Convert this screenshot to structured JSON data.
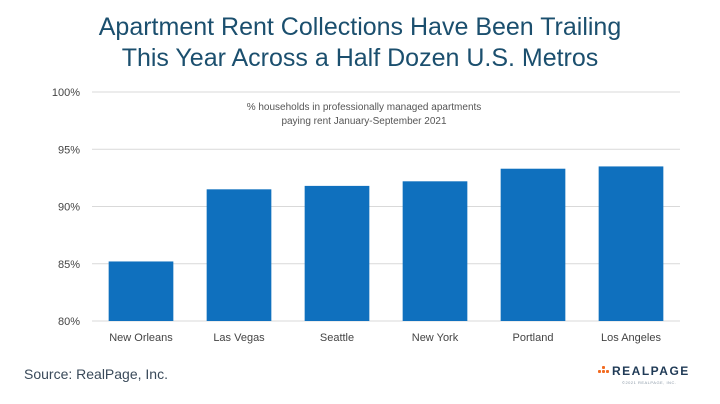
{
  "title_line1": "Apartment Rent Collections Have Been Trailing",
  "title_line2": "This Year Across a Half Dozen U.S. Metros",
  "source": "Source: RealPage, Inc.",
  "logo": {
    "wordmark": "REALPAGE",
    "subtext": "©2021 REALPAGE, INC."
  },
  "colors": {
    "title": "#1b4f6e",
    "bar": "#0f70be",
    "grid": "#d9d9d9",
    "logo_accent": "#f26b21"
  },
  "chart_data": {
    "type": "bar",
    "annotation_line1": "% households in professionally managed apartments",
    "annotation_line2": "paying rent January-September 2021",
    "categories": [
      "New Orleans",
      "Las Vegas",
      "Seattle",
      "New York",
      "Portland",
      "Los Angeles"
    ],
    "values": [
      85.2,
      91.5,
      91.8,
      92.2,
      93.3,
      93.5
    ],
    "ylim": [
      80,
      100
    ],
    "yticks": [
      80,
      85,
      90,
      95,
      100
    ],
    "ytick_labels": [
      "80%",
      "85%",
      "90%",
      "95%",
      "100%"
    ],
    "grid": true,
    "legend": "none"
  }
}
